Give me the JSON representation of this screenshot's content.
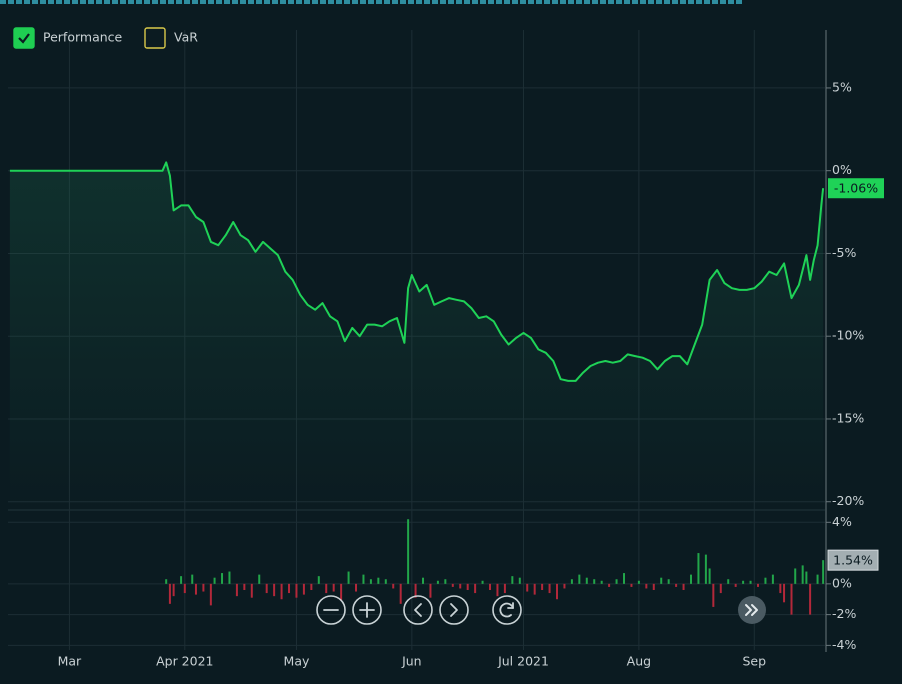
{
  "chart_data": [
    {
      "type": "line",
      "legend": [
        {
          "name": "Performance",
          "checked": true,
          "color": "#1fce52"
        },
        {
          "name": "VaR",
          "checked": false,
          "color": "#d9c94a"
        }
      ],
      "color": "#1fd257",
      "x": [
        44,
        85,
        86,
        87,
        88,
        90,
        92,
        94,
        96,
        98,
        100,
        102,
        104,
        106,
        108,
        110,
        112,
        114,
        116,
        118,
        120,
        122,
        124,
        126,
        128,
        130,
        132,
        134,
        136,
        138,
        140,
        142,
        144,
        146,
        148,
        150,
        151,
        152,
        154,
        156,
        158,
        160,
        162,
        164,
        166,
        168,
        170,
        172,
        174,
        176,
        178,
        180,
        182,
        184,
        186,
        188,
        190,
        192,
        194,
        196,
        198,
        200,
        202,
        204,
        206,
        208,
        210,
        212,
        214,
        216,
        218,
        220,
        222,
        224,
        226,
        228,
        230,
        232,
        234,
        236,
        238,
        240,
        242,
        244,
        246,
        248,
        250,
        252,
        254,
        256,
        258,
        259,
        260,
        261,
        262,
        262.5
      ],
      "values": [
        0,
        0,
        0.5,
        -0.3,
        -2.4,
        -2.1,
        -2.1,
        -2.8,
        -3.1,
        -4.3,
        -4.5,
        -3.9,
        -3.1,
        -3.9,
        -4.2,
        -4.9,
        -4.3,
        -4.7,
        -5.1,
        -6.1,
        -6.6,
        -7.5,
        -8.1,
        -8.4,
        -8.0,
        -8.8,
        -9.1,
        -10.3,
        -9.5,
        -10.0,
        -9.3,
        -9.3,
        -9.4,
        -9.1,
        -8.9,
        -10.4,
        -7.1,
        -6.3,
        -7.3,
        -6.9,
        -8.1,
        -7.9,
        -7.7,
        -7.8,
        -7.9,
        -8.3,
        -8.9,
        -8.8,
        -9.1,
        -9.9,
        -10.5,
        -10.1,
        -9.8,
        -10.1,
        -10.8,
        -11.0,
        -11.5,
        -12.6,
        -12.7,
        -12.7,
        -12.2,
        -11.8,
        -11.6,
        -11.5,
        -11.6,
        -11.5,
        -11.1,
        -11.2,
        -11.3,
        -11.5,
        -12.0,
        -11.5,
        -11.2,
        -11.2,
        -11.7,
        -10.5,
        -9.3,
        -6.6,
        -6.0,
        -6.8,
        -7.1,
        -7.2,
        -7.2,
        -7.1,
        -6.7,
        -6.1,
        -6.3,
        -5.6,
        -7.7,
        -6.9,
        -5.1,
        -6.6,
        -5.4,
        -4.5,
        -2.1,
        -1.06
      ],
      "last_label": "-1.06%",
      "xlim": [
        43.5,
        263
      ],
      "ylim": [
        -20.5,
        8.5
      ],
      "yticks": [
        {
          "value": 5,
          "label": "5%"
        },
        {
          "value": 0,
          "label": "0%"
        },
        {
          "value": -5,
          "label": "-5%"
        },
        {
          "value": -10,
          "label": "-10%"
        },
        {
          "value": -15,
          "label": "-15%"
        },
        {
          "value": -20,
          "label": "-20%"
        }
      ],
      "grid": true
    },
    {
      "type": "bar",
      "colors": {
        "up": "#22a64a",
        "down": "#b3283a"
      },
      "x": [
        86,
        87,
        88,
        90,
        91,
        93,
        94,
        96,
        98,
        99,
        101,
        103,
        105,
        107,
        109,
        111,
        113,
        115,
        117,
        119,
        121,
        123,
        125,
        127,
        129,
        131,
        133,
        135,
        137,
        139,
        141,
        143,
        145,
        147,
        149,
        151,
        153,
        155,
        157,
        159,
        161,
        163,
        165,
        167,
        169,
        171,
        173,
        175,
        177,
        179,
        181,
        183,
        185,
        187,
        189,
        191,
        193,
        195,
        197,
        199,
        201,
        203,
        205,
        207,
        209,
        211,
        213,
        215,
        217,
        219,
        221,
        223,
        225,
        227,
        229,
        231,
        232,
        233,
        235,
        237,
        239,
        241,
        243,
        245,
        247,
        249,
        251,
        252,
        254,
        255,
        257,
        258,
        259,
        261,
        262.5
      ],
      "values": [
        0.3,
        -1.3,
        -0.8,
        0.5,
        -0.6,
        0.6,
        -0.7,
        -0.5,
        -1.4,
        0.4,
        0.7,
        0.8,
        -0.8,
        -0.4,
        -0.9,
        0.6,
        -0.6,
        -0.8,
        -1.0,
        -0.6,
        -0.9,
        -0.7,
        -0.4,
        0.5,
        -0.6,
        -0.5,
        -1.1,
        0.8,
        -0.5,
        0.6,
        0.3,
        0.4,
        0.3,
        -0.3,
        -1.3,
        4.2,
        -0.9,
        0.4,
        -0.9,
        0.2,
        0.3,
        -0.2,
        -0.3,
        -0.4,
        -0.6,
        0.2,
        -0.4,
        -0.8,
        -0.6,
        0.5,
        0.4,
        -0.5,
        -0.7,
        -0.4,
        -0.6,
        -1.0,
        -0.3,
        0.3,
        0.6,
        0.4,
        0.3,
        0.2,
        -0.2,
        0.3,
        0.7,
        -0.2,
        0.2,
        -0.3,
        -0.4,
        0.4,
        0.3,
        -0.2,
        -0.4,
        0.6,
        2.0,
        1.9,
        1.0,
        -1.5,
        -0.6,
        0.3,
        -0.2,
        0.2,
        0.2,
        -0.2,
        0.4,
        0.6,
        -0.6,
        -1.2,
        -2.0,
        1.0,
        1.2,
        0.8,
        -2.0,
        0.6,
        1.54
      ],
      "last_label": "1.54%",
      "xlim": [
        43.5,
        263
      ],
      "xticks": [
        {
          "value": 60,
          "label": "Mar"
        },
        {
          "value": 91,
          "label": "Apr 2021"
        },
        {
          "value": 121,
          "label": "May"
        },
        {
          "value": 152,
          "label": "Jun"
        },
        {
          "value": 182,
          "label": "Jul 2021"
        },
        {
          "value": 213,
          "label": "Aug"
        },
        {
          "value": 244,
          "label": "Sep"
        }
      ],
      "ylim": [
        -4.3,
        4.8
      ],
      "yticks": [
        {
          "value": 4,
          "label": "4%"
        },
        {
          "value": 0,
          "label": "0%"
        },
        {
          "value": -2,
          "label": "-2%"
        },
        {
          "value": -4,
          "label": "-4%"
        }
      ],
      "grid": true
    }
  ]
}
